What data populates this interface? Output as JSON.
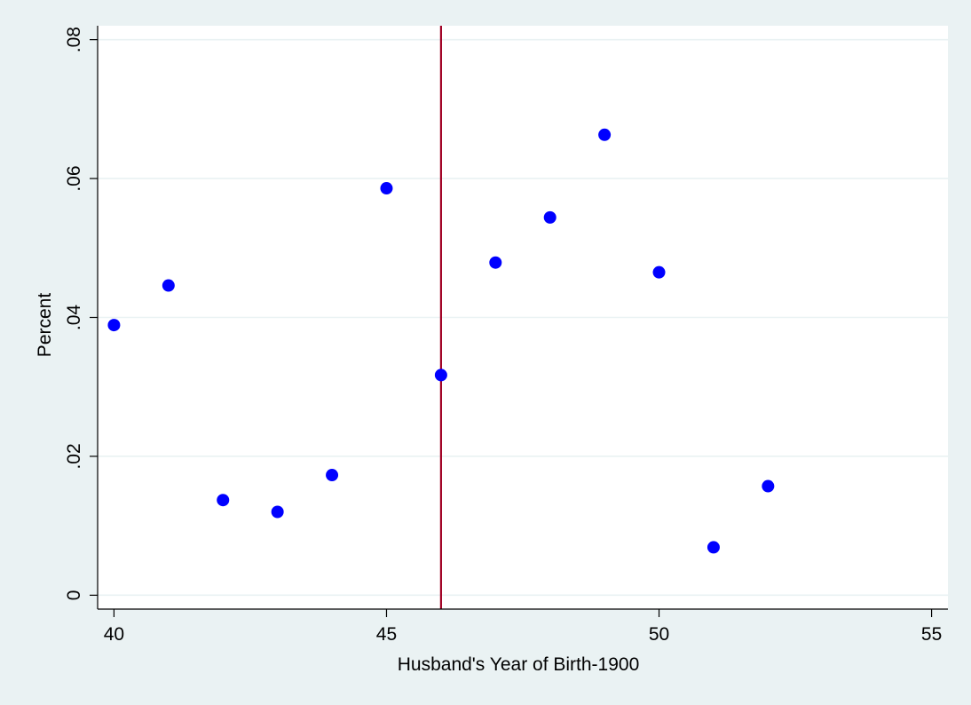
{
  "colors": {
    "background": "#eaf2f3",
    "plot_background": "#ffffff",
    "gridline": "#eaf2f3",
    "marker": "#0000ff",
    "reference_line": "#a00024",
    "axis": "#000000"
  },
  "chart_data": {
    "type": "scatter",
    "title": "",
    "xlabel": "Husband's Year of Birth-1900",
    "ylabel": "Percent",
    "xlim": [
      39.7,
      55.3
    ],
    "ylim": [
      -0.002,
      0.082
    ],
    "x_ticks": [
      40,
      45,
      50,
      55
    ],
    "x_tick_labels": [
      "40",
      "45",
      "50",
      "55"
    ],
    "y_ticks": [
      0,
      0.02,
      0.04,
      0.06,
      0.08
    ],
    "y_tick_labels": [
      "0",
      ".02",
      ".04",
      ".06",
      ".08"
    ],
    "grid": "horizontal",
    "legend": "none",
    "reference_line_x": 46,
    "points": [
      {
        "x": 40,
        "y": 0.0389
      },
      {
        "x": 41,
        "y": 0.0446
      },
      {
        "x": 42,
        "y": 0.0137
      },
      {
        "x": 43,
        "y": 0.012
      },
      {
        "x": 44,
        "y": 0.0173
      },
      {
        "x": 45,
        "y": 0.0586
      },
      {
        "x": 46,
        "y": 0.0317
      },
      {
        "x": 47,
        "y": 0.0479
      },
      {
        "x": 48,
        "y": 0.0544
      },
      {
        "x": 49,
        "y": 0.0663
      },
      {
        "x": 50,
        "y": 0.0465
      },
      {
        "x": 51,
        "y": 0.0069
      },
      {
        "x": 52,
        "y": 0.0157
      }
    ]
  }
}
